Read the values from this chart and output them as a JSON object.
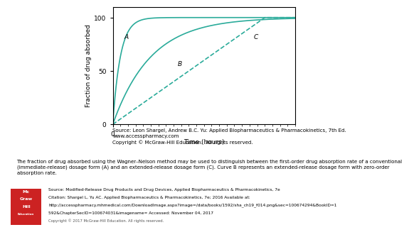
{
  "xlabel": "Time (hours)",
  "ylabel": "Fraction of drug absorbed",
  "xlim": [
    0,
    24
  ],
  "ylim": [
    0,
    110
  ],
  "yticks": [
    0,
    50,
    100
  ],
  "curve_color": "#2aab9a",
  "label_A": "A",
  "label_B": "B",
  "label_C": "C",
  "source_text": "Source: Leon Shargel, Andrew B.C. Yu: Applied Biopharmaceutics & Pharmacokinetics, 7th Ed.\nwww.accesspharmacy.com\nCopyright © McGraw-Hill Education.  All rights reserved.",
  "caption_text": "The fraction of drug absorbed using the Wagner–Nelson method may be used to distinguish between the first-order drug absorption rate of a conventional\n(immediate-release) dosage form (A) and an extended-release dosage form (C). Curve B represents an extended-release dosage form with zero-order\nabsorption rate.",
  "bottom_line1": "Source: Modified-Release Drug Products and Drug Devices, Applied Biopharmaceutics & Pharmacokinetics, 7e",
  "bottom_line2": "Citation: Shargel L, Yu AC. Applied Biopharmaceutics & Pharmacokinetics, 7e; 2016 Available at:",
  "bottom_line3": "http://accesspharmacy.mhmedical.com/DownloadImage.aspx?image=/data/books/1592/sha_ch19_f014.png&sec=100674294&BookID=1",
  "bottom_line4": "592&ChapterSecID=100674031&imagename= Accessed: November 04, 2017",
  "bottom_line5": "Copyright © 2017 McGraw-Hill Education. All rights reserved.",
  "logo_color": "#cc2222",
  "logo_lines": [
    "Mc",
    "Graw",
    "Hill",
    "Education"
  ],
  "bg_color": "#ffffff",
  "bottom_bg": "#f0f0f0"
}
